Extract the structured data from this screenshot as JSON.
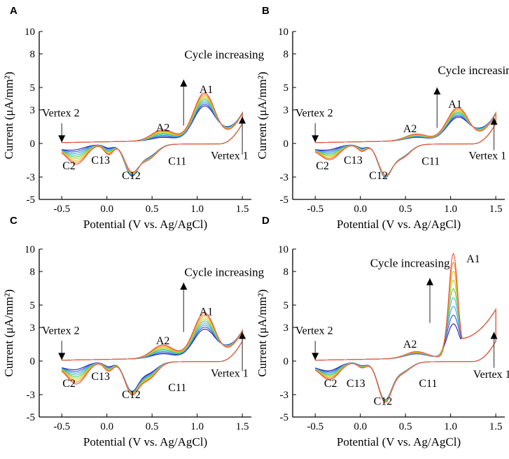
{
  "chart_data": [
    {
      "panel": "A",
      "type": "line",
      "xlabel": "Potential (V vs. Ag/AgCl)",
      "ylabel": "Current (μA/mm²)",
      "xlim": [
        -0.75,
        1.6
      ],
      "ylim": [
        -5,
        10
      ],
      "xticks": [
        "-0.5",
        "0.0",
        "0.5",
        "1.0",
        "1.5"
      ],
      "yticks": [
        "-5",
        "-3",
        "0",
        "3",
        "5",
        "8",
        "10"
      ],
      "cycles": 8,
      "colors": [
        "#1f1fb4",
        "#3a55d6",
        "#4d9be0",
        "#39c6c4",
        "#58c85a",
        "#b5d334",
        "#f0c020",
        "#f08a1c",
        "#e6504a"
      ],
      "peaks": {
        "A1": [
          3.0,
          4.2
        ],
        "A2": [
          0.3,
          1.0
        ],
        "C11": [
          -2.0,
          -2.4
        ],
        "C12": [
          -2.6,
          -2.2
        ],
        "C13": [
          -0.3,
          -0.9
        ],
        "C2": [
          -0.3,
          -1.6
        ]
      },
      "annotations": {
        "cycle": "Cycle increasing",
        "vertex1": "Vertex 1",
        "vertex2": "Vertex 2",
        "A1": "A1",
        "A2": "A2",
        "C11": "C11",
        "C12": "C12",
        "C13": "C13",
        "C2": "C2"
      }
    },
    {
      "panel": "B",
      "type": "line",
      "xlabel": "Potential (V vs. Ag/AgCl)",
      "ylabel": "Current (μA/mm²)",
      "xlim": [
        -0.75,
        1.6
      ],
      "ylim": [
        -5,
        10
      ],
      "xticks": [
        "-0.5",
        "0.0",
        "0.5",
        "1.0",
        "1.5"
      ],
      "yticks": [
        "-5",
        "-3",
        "0",
        "3",
        "5",
        "8",
        "10"
      ],
      "cycles": 8,
      "colors": [
        "#1f1fb4",
        "#3a55d6",
        "#4d9be0",
        "#39c6c4",
        "#58c85a",
        "#b5d334",
        "#f0c020",
        "#f08a1c",
        "#e6504a"
      ],
      "peaks": {
        "A1": [
          2.0,
          2.9
        ],
        "A2": [
          0.3,
          0.6
        ],
        "C11": [
          -2.0,
          -2.2
        ],
        "C12": [
          -2.7,
          -2.5
        ],
        "C13": [
          -0.3,
          -0.6
        ],
        "C2": [
          -0.3,
          -1.2
        ]
      },
      "annotations": {
        "cycle": "Cycle increasing",
        "vertex1": "Vertex 1",
        "vertex2": "Vertex 2",
        "A1": "A1",
        "A2": "A2",
        "C11": "C11",
        "C12": "C12",
        "C13": "C13",
        "C2": "C2"
      }
    },
    {
      "panel": "C",
      "type": "line",
      "xlabel": "Potential (V vs. Ag/AgCl)",
      "ylabel": "Current (μA/mm²)",
      "xlim": [
        -0.75,
        1.6
      ],
      "ylim": [
        -5,
        10
      ],
      "xticks": [
        "-0.5",
        "0.0",
        "0.5",
        "1.0",
        "1.5"
      ],
      "yticks": [
        "-5",
        "-3",
        "0",
        "3",
        "5",
        "8",
        "10"
      ],
      "cycles": 8,
      "colors": [
        "#1f1fb4",
        "#3a55d6",
        "#4d9be0",
        "#39c6c4",
        "#58c85a",
        "#b5d334",
        "#f0c020",
        "#f08a1c",
        "#e6504a"
      ],
      "peaks": {
        "A1": [
          2.5,
          4.0
        ],
        "A2": [
          0.4,
          1.2
        ],
        "C11": [
          -1.8,
          -2.8
        ],
        "C12": [
          -2.4,
          -2.6
        ],
        "C13": [
          -0.4,
          -0.8
        ],
        "C2": [
          -0.5,
          -1.8
        ]
      },
      "annotations": {
        "cycle": "Cycle increasing",
        "vertex1": "Vertex 1",
        "vertex2": "Vertex 2",
        "A1": "A1",
        "A2": "A2",
        "C11": "C11",
        "C12": "C12",
        "C13": "C13",
        "C2": "C2"
      }
    },
    {
      "panel": "D",
      "type": "line",
      "xlabel": "Potential (V vs. Ag/AgCl)",
      "ylabel": "Current (μA/mm²)",
      "xlim": [
        -0.75,
        1.6
      ],
      "ylim": [
        -5,
        10
      ],
      "xticks": [
        "-0.5",
        "0.0",
        "0.5",
        "1.0",
        "1.5"
      ],
      "yticks": [
        "-5",
        "-3",
        "0",
        "3",
        "5",
        "8",
        "10"
      ],
      "cycles": 8,
      "colors": [
        "#1f1fb4",
        "#3a55d6",
        "#4d9be0",
        "#39c6c4",
        "#58c85a",
        "#b5d334",
        "#f0c020",
        "#f08a1c",
        "#e6504a"
      ],
      "peaks": {
        "A1": [
          3.0,
          9.3
        ],
        "A2": [
          0.4,
          0.6
        ],
        "C11": [
          -1.6,
          -1.8
        ],
        "C12": [
          -3.2,
          -3.4
        ],
        "C13": [
          -0.3,
          -0.5
        ],
        "C2": [
          -0.6,
          -1.4
        ]
      },
      "annotations": {
        "cycle": "Cycle increasing",
        "vertex1": "Vertex 1",
        "vertex2": "Vertex 2",
        "A1": "A1",
        "A2": "A2",
        "C11": "C11",
        "C12": "C12",
        "C13": "C13",
        "C2": "C2"
      }
    }
  ]
}
